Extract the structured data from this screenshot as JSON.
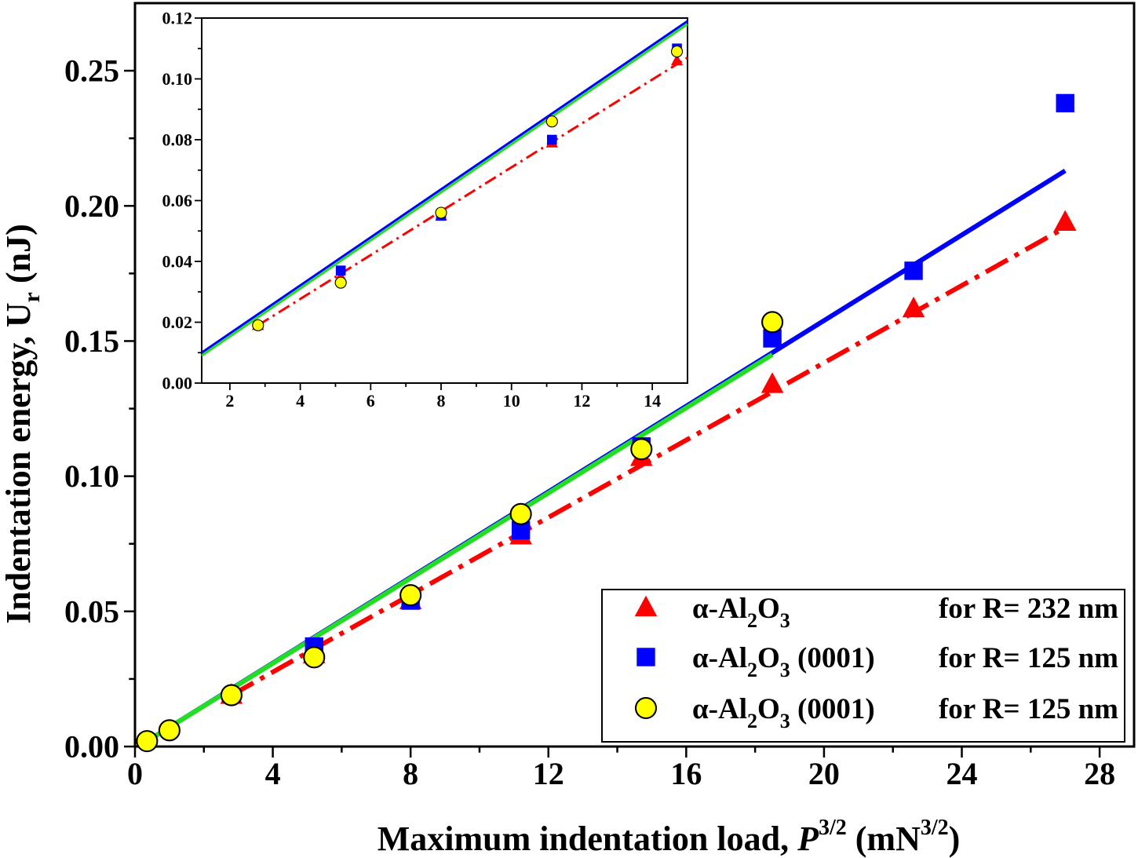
{
  "chart_data": [
    {
      "type": "scatter",
      "name": "main",
      "xlabel": {
        "text": "Maximum indentation load, ",
        "var": "P",
        "var_sup": "3/2",
        "unit_open": " (mN",
        "unit_sup": "3/2",
        "unit_close": ")"
      },
      "ylabel": {
        "text": "Indentation energy, U",
        "sub": "r",
        "unit": " (nJ)"
      },
      "xlim": [
        0,
        29
      ],
      "ylim": [
        0,
        0.275
      ],
      "xticks": [
        0,
        4,
        8,
        12,
        16,
        20,
        24,
        28
      ],
      "xtick_labels": [
        "0",
        "4",
        "8",
        "12",
        "16",
        "20",
        "24",
        "28"
      ],
      "yticks": [
        0.0,
        0.05,
        0.1,
        0.15,
        0.2,
        0.25
      ],
      "ytick_labels": [
        "0.00",
        "0.05",
        "0.10",
        "0.15",
        "0.20",
        "0.25"
      ],
      "series": [
        {
          "name": "alpha-Al2O3 R=232 (triangle)",
          "marker": "triangle",
          "color": "#ff0000",
          "x": [
            2.8,
            5.2,
            8.0,
            11.2,
            14.7,
            18.5,
            22.6,
            27.0
          ],
          "y": [
            0.019,
            0.034,
            0.054,
            0.078,
            0.107,
            0.134,
            0.162,
            0.194
          ]
        },
        {
          "name": "alpha-Al2O3 (0001) R=125 (square)",
          "marker": "square",
          "color": "#0000ff",
          "x": [
            5.2,
            8.0,
            11.2,
            14.7,
            18.5,
            22.6,
            27.0
          ],
          "y": [
            0.037,
            0.054,
            0.08,
            0.111,
            0.151,
            0.176,
            0.238
          ]
        },
        {
          "name": "alpha-Al2O3 (0001) R=125 (circle)",
          "marker": "circle",
          "color": "#ffff00",
          "x": [
            0.35,
            1.0,
            2.8,
            5.2,
            8.0,
            11.2,
            14.7,
            18.5
          ],
          "y": [
            0.002,
            0.006,
            0.019,
            0.033,
            0.056,
            0.086,
            0.11,
            0.157
          ]
        }
      ],
      "lines": [
        {
          "name": "blue-fit",
          "color": "#0000ff",
          "style": "solid",
          "x": [
            0.35,
            27.0
          ],
          "y": [
            0.002,
            0.213
          ]
        },
        {
          "name": "red-fit",
          "color": "#ff0000",
          "style": "dashdot",
          "x": [
            2.8,
            27.0
          ],
          "y": [
            0.019,
            0.192
          ]
        },
        {
          "name": "green-fit",
          "color": "#22dd22",
          "style": "solid",
          "x": [
            0.35,
            18.5
          ],
          "y": [
            0.002,
            0.145
          ]
        }
      ],
      "legend": {
        "placement": "bottom-right",
        "entries": [
          {
            "marker": "triangle",
            "color": "#ff0000",
            "prefix": "α-Al",
            "sub1": "2",
            "mid": "O",
            "sub2": "3",
            "suffix": "",
            "note": "for R= 232 nm"
          },
          {
            "marker": "square",
            "color": "#0000ff",
            "prefix": "α-Al",
            "sub1": "2",
            "mid": "O",
            "sub2": "3",
            "suffix": " (0001)",
            "note": "for R= 125 nm"
          },
          {
            "marker": "circle",
            "color": "#ffff00",
            "prefix": "α-Al",
            "sub1": "2",
            "mid": "O",
            "sub2": "3",
            "suffix": " (0001)",
            "note": "for R= 125 nm"
          }
        ]
      }
    },
    {
      "type": "scatter",
      "name": "inset",
      "placement": "top-left",
      "xlim": [
        1.2,
        15.0
      ],
      "ylim": [
        0,
        0.12
      ],
      "xticks": [
        2,
        4,
        6,
        8,
        10,
        12,
        14
      ],
      "xtick_labels": [
        "2",
        "4",
        "6",
        "8",
        "10",
        "12",
        "14"
      ],
      "yticks": [
        0.0,
        0.02,
        0.04,
        0.06,
        0.08,
        0.1,
        0.12
      ],
      "ytick_labels": [
        "0.00",
        "0.02",
        "0.04",
        "0.06",
        "0.08",
        "0.10",
        "0.12"
      ],
      "series": [
        {
          "name": "triangle",
          "marker": "triangle",
          "color": "#ff0000",
          "x": [
            2.8,
            5.15,
            8.0,
            11.15,
            14.7
          ],
          "y": [
            0.019,
            0.035,
            0.055,
            0.079,
            0.106
          ]
        },
        {
          "name": "square",
          "marker": "square",
          "color": "#0000ff",
          "x": [
            5.15,
            8.0,
            11.15,
            14.7
          ],
          "y": [
            0.037,
            0.055,
            0.08,
            0.11
          ]
        },
        {
          "name": "circle",
          "marker": "circle",
          "color": "#ffff00",
          "x": [
            2.8,
            5.15,
            8.0,
            11.15,
            14.7
          ],
          "y": [
            0.019,
            0.033,
            0.056,
            0.086,
            0.109
          ]
        }
      ],
      "lines": [
        {
          "name": "blue-fit",
          "color": "#0000ff",
          "style": "solid",
          "x": [
            1.2,
            15.0
          ],
          "y": [
            0.01,
            0.119
          ]
        },
        {
          "name": "green-fit",
          "color": "#22dd22",
          "style": "solid",
          "x": [
            1.2,
            15.0
          ],
          "y": [
            0.009,
            0.118
          ]
        },
        {
          "name": "red-fit",
          "color": "#ff0000",
          "style": "dashdot",
          "x": [
            2.8,
            15.0
          ],
          "y": [
            0.019,
            0.107
          ]
        }
      ]
    }
  ]
}
